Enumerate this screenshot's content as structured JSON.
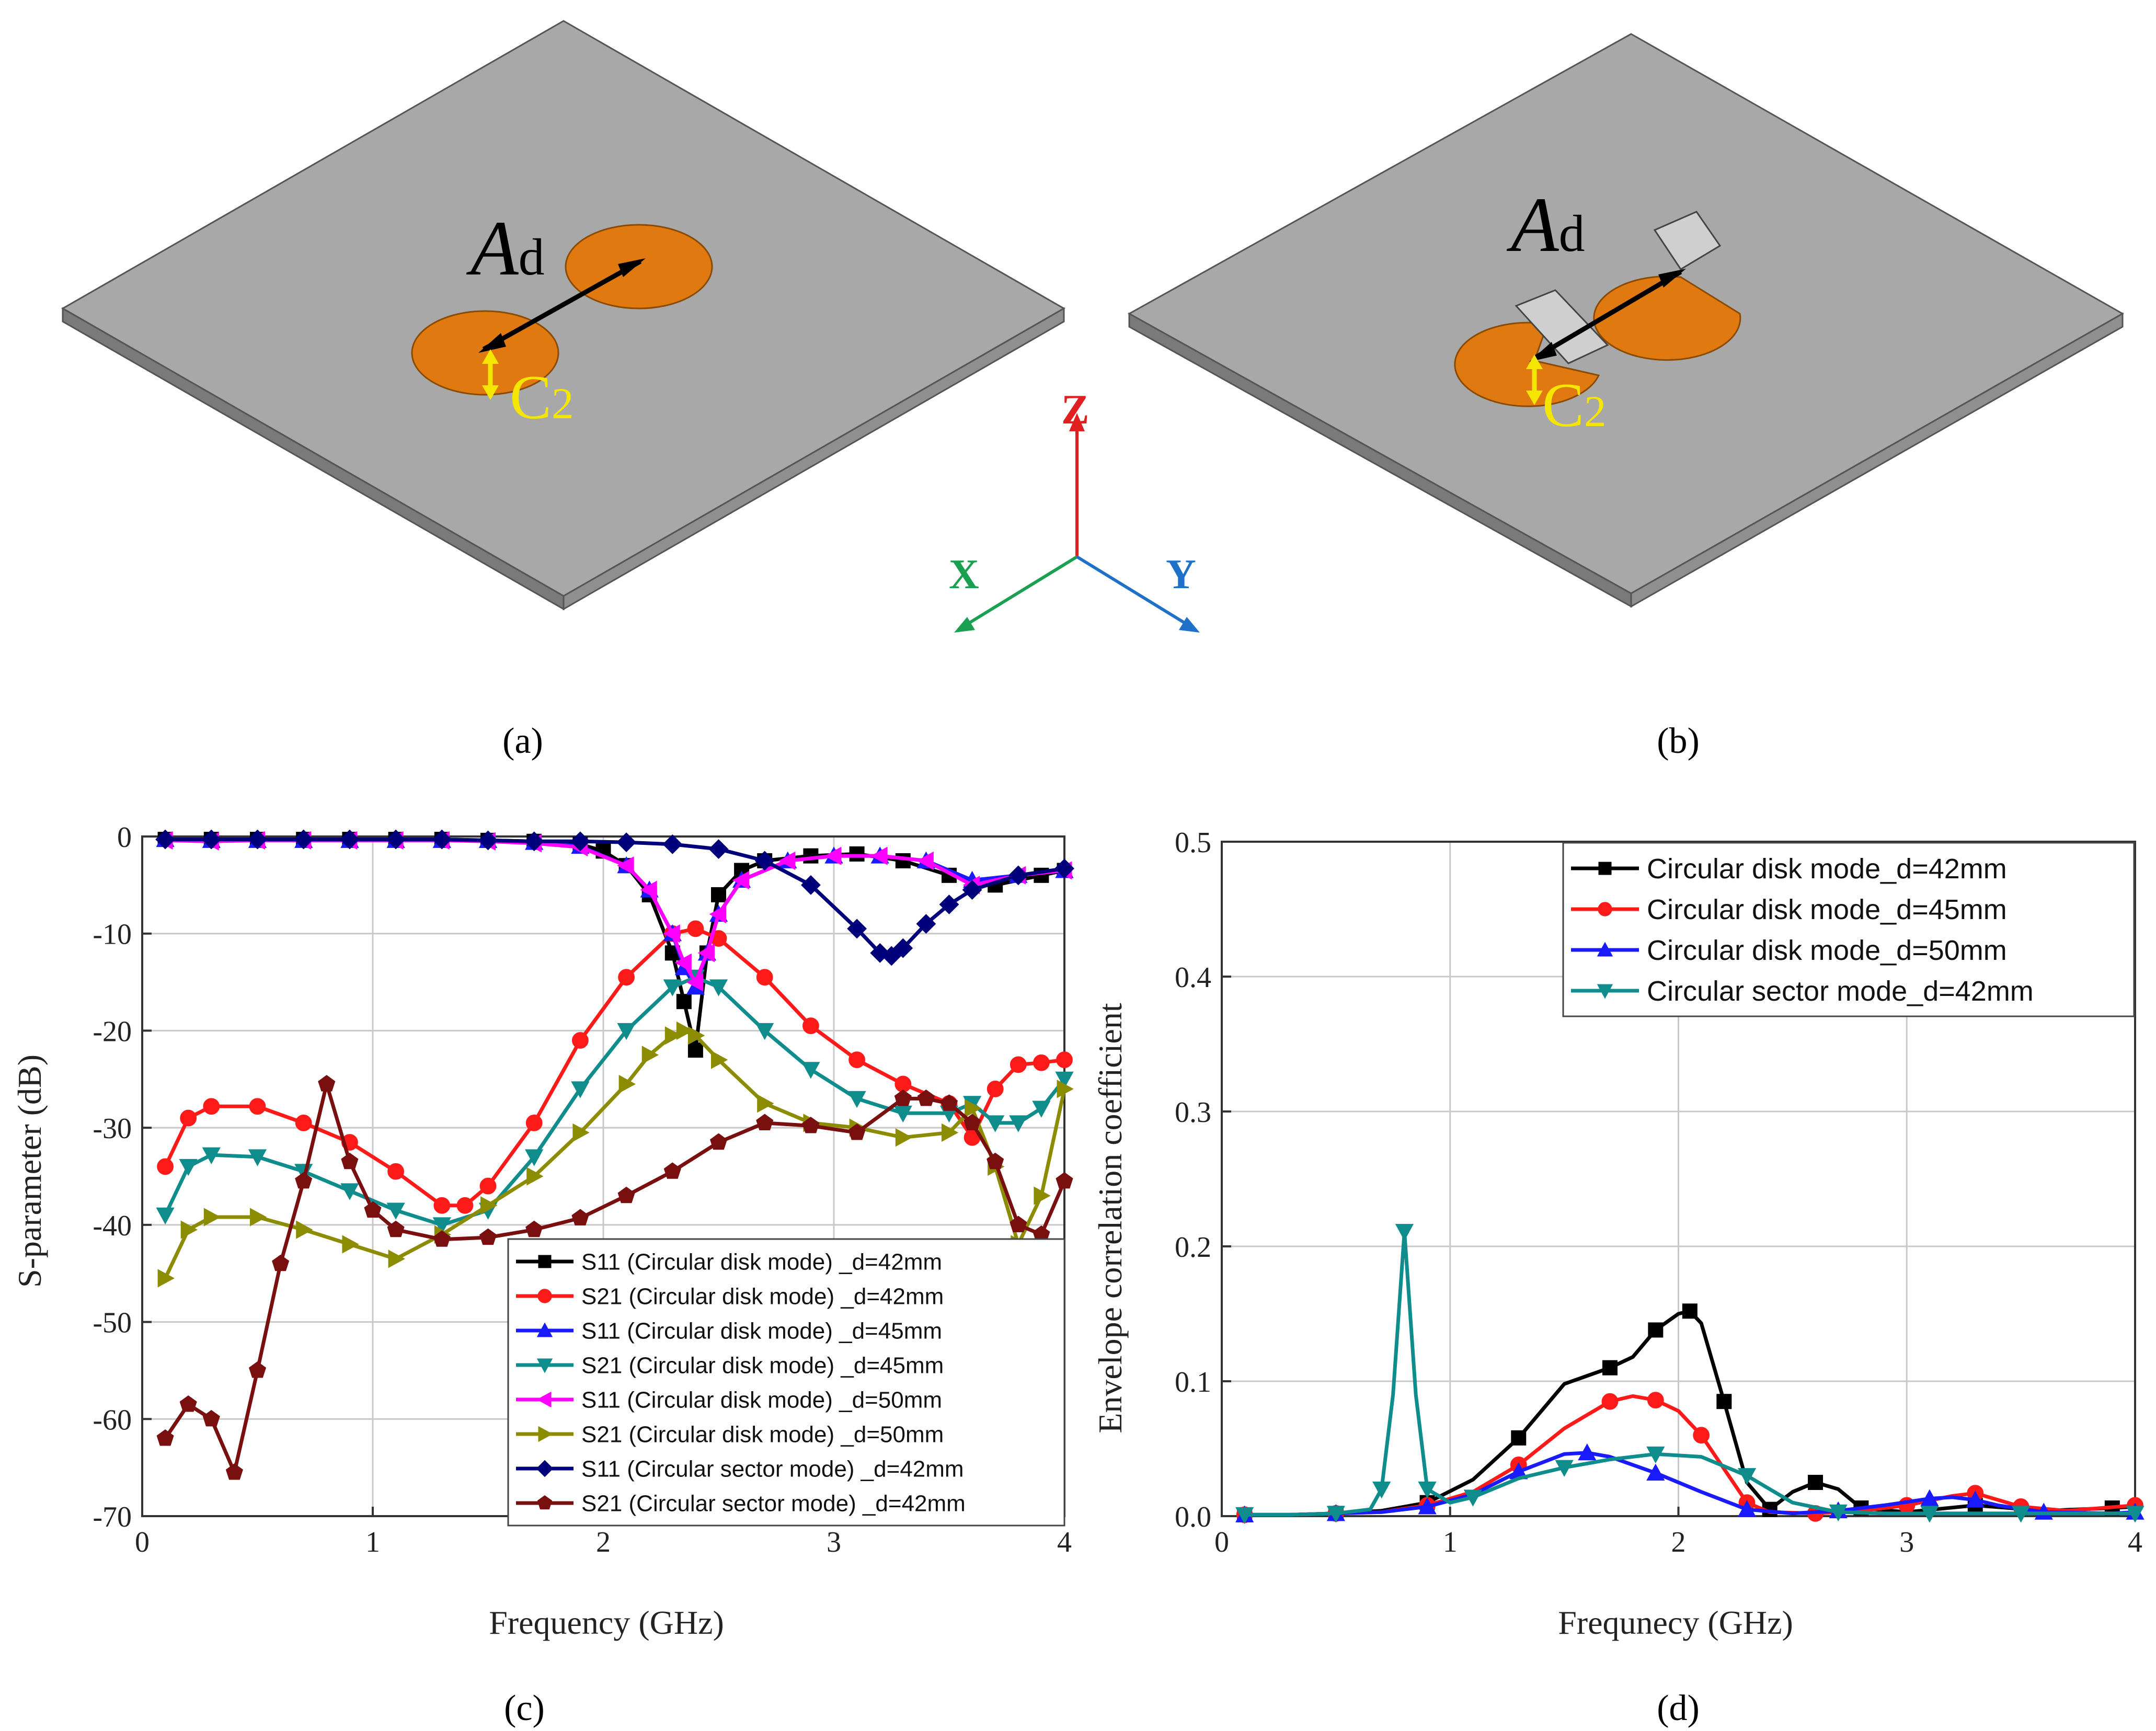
{
  "captions": [
    "(a)",
    "(b)",
    "(c)",
    "(d)"
  ],
  "model_labels": {
    "distance": "A",
    "distance_sub": "d",
    "coupler": "C",
    "coupler_sub": "2"
  },
  "axes_labels": {
    "z": "Z",
    "x": "X",
    "y": "Y"
  },
  "colors": {
    "plate": "#a8a8a8",
    "patch": "#e07a10",
    "z_axis": "#e02020",
    "x_axis": "#1aa050",
    "y_axis": "#1f70c8",
    "coupler_arrow": "#f5e600"
  },
  "chart_data": [
    {
      "type": "line",
      "xlabel": "Frequency (GHz)",
      "ylabel": "S-parameter (dB)",
      "xlim": [
        0,
        4
      ],
      "ylim": [
        -70,
        0
      ],
      "xticks": [
        0,
        1,
        2,
        3,
        4
      ],
      "yticks": [
        0,
        -10,
        -20,
        -30,
        -40,
        -50,
        -60,
        -70
      ],
      "grid": true,
      "legend_position": "bottom-right",
      "series": [
        {
          "name": "S11 (Circular disk mode) _d=42mm",
          "color": "#000000",
          "marker": "square",
          "x": [
            0.1,
            0.3,
            0.5,
            0.7,
            0.9,
            1.1,
            1.3,
            1.5,
            1.7,
            1.9,
            2.0,
            2.1,
            2.2,
            2.3,
            2.35,
            2.4,
            2.45,
            2.5,
            2.6,
            2.7,
            2.9,
            3.1,
            3.3,
            3.5,
            3.7,
            3.9,
            4.0
          ],
          "y": [
            -0.3,
            -0.3,
            -0.3,
            -0.3,
            -0.3,
            -0.3,
            -0.3,
            -0.4,
            -0.5,
            -0.8,
            -1.5,
            -3,
            -6,
            -12,
            -17,
            -22,
            -12,
            -6,
            -3.5,
            -2.5,
            -2,
            -1.8,
            -2.5,
            -4,
            -5,
            -4,
            -3.5
          ]
        },
        {
          "name": "S21 (Circular disk mode) _d=42mm",
          "color": "#ff1a1a",
          "marker": "circle",
          "x": [
            0.1,
            0.2,
            0.3,
            0.5,
            0.7,
            0.9,
            1.1,
            1.3,
            1.4,
            1.5,
            1.7,
            1.9,
            2.1,
            2.3,
            2.4,
            2.5,
            2.7,
            2.9,
            3.1,
            3.3,
            3.5,
            3.6,
            3.7,
            3.8,
            3.9,
            4.0
          ],
          "y": [
            -34,
            -29,
            -27.8,
            -27.8,
            -29.5,
            -31.5,
            -34.5,
            -38,
            -38,
            -36,
            -29.5,
            -21,
            -14.5,
            -10,
            -9.5,
            -10.5,
            -14.5,
            -19.5,
            -23,
            -25.5,
            -27.5,
            -31,
            -26,
            -23.5,
            -23.3,
            -23
          ]
        },
        {
          "name": "S11 (Circular disk mode) _d=45mm",
          "color": "#1a1aff",
          "marker": "triangle-up",
          "x": [
            0.1,
            0.3,
            0.5,
            0.7,
            0.9,
            1.1,
            1.3,
            1.5,
            1.7,
            1.9,
            2.1,
            2.2,
            2.3,
            2.35,
            2.4,
            2.45,
            2.5,
            2.6,
            2.8,
            3.0,
            3.2,
            3.4,
            3.6,
            3.8,
            4.0
          ],
          "y": [
            -0.3,
            -0.4,
            -0.4,
            -0.4,
            -0.4,
            -0.4,
            -0.4,
            -0.4,
            -0.6,
            -1,
            -3,
            -5.5,
            -10,
            -13.5,
            -15.5,
            -12,
            -8,
            -4.5,
            -2.5,
            -2,
            -2,
            -2.5,
            -4.5,
            -4,
            -3.5
          ]
        },
        {
          "name": "S21 (Circular disk mode) _d=45mm",
          "color": "#0f8c8c",
          "marker": "triangle-down",
          "x": [
            0.1,
            0.2,
            0.3,
            0.5,
            0.7,
            0.9,
            1.1,
            1.3,
            1.5,
            1.7,
            1.9,
            2.1,
            2.3,
            2.4,
            2.5,
            2.7,
            2.9,
            3.1,
            3.3,
            3.5,
            3.6,
            3.7,
            3.8,
            3.9,
            4.0
          ],
          "y": [
            -39,
            -34,
            -32.8,
            -33,
            -34.5,
            -36.5,
            -38.5,
            -40,
            -38.5,
            -33,
            -26,
            -20,
            -15.5,
            -14.5,
            -15.5,
            -20,
            -24,
            -27,
            -28.5,
            -28.5,
            -27.5,
            -29.5,
            -29.5,
            -28,
            -25
          ]
        },
        {
          "name": "S11 (Circular disk mode) _d=50mm",
          "color": "#ff00ff",
          "marker": "triangle-left",
          "x": [
            0.1,
            0.3,
            0.5,
            0.7,
            0.9,
            1.1,
            1.3,
            1.5,
            1.7,
            1.9,
            2.1,
            2.2,
            2.3,
            2.35,
            2.4,
            2.45,
            2.5,
            2.6,
            2.8,
            3.0,
            3.2,
            3.4,
            3.6,
            3.8,
            4.0
          ],
          "y": [
            -0.4,
            -0.5,
            -0.4,
            -0.4,
            -0.4,
            -0.4,
            -0.4,
            -0.5,
            -0.7,
            -1.1,
            -3,
            -5.5,
            -10,
            -13,
            -15,
            -12,
            -8,
            -4.5,
            -2.5,
            -2,
            -2,
            -2.5,
            -5,
            -4,
            -3.5
          ]
        },
        {
          "name": "S21 (Circular disk mode) _d=50mm",
          "color": "#8c8c00",
          "marker": "triangle-right",
          "x": [
            0.1,
            0.2,
            0.3,
            0.5,
            0.7,
            0.9,
            1.1,
            1.3,
            1.5,
            1.7,
            1.9,
            2.1,
            2.2,
            2.3,
            2.35,
            2.4,
            2.5,
            2.7,
            2.9,
            3.1,
            3.3,
            3.5,
            3.6,
            3.7,
            3.8,
            3.9,
            4.0
          ],
          "y": [
            -45.5,
            -40.5,
            -39.2,
            -39.2,
            -40.5,
            -42,
            -43.5,
            -41,
            -38,
            -35,
            -30.5,
            -25.5,
            -22.5,
            -20.5,
            -20,
            -20.5,
            -23,
            -27.5,
            -29.5,
            -30,
            -31,
            -30.5,
            -28,
            -34,
            -42,
            -37,
            -26
          ]
        },
        {
          "name": "S11 (Circular sector mode) _d=42mm",
          "color": "#00007a",
          "marker": "diamond",
          "x": [
            0.1,
            0.3,
            0.5,
            0.7,
            0.9,
            1.1,
            1.3,
            1.5,
            1.7,
            1.9,
            2.1,
            2.3,
            2.5,
            2.7,
            2.9,
            3.1,
            3.2,
            3.25,
            3.3,
            3.4,
            3.5,
            3.6,
            3.8,
            4.0
          ],
          "y": [
            -0.3,
            -0.3,
            -0.3,
            -0.3,
            -0.3,
            -0.3,
            -0.3,
            -0.4,
            -0.5,
            -0.5,
            -0.6,
            -0.8,
            -1.3,
            -2.5,
            -5,
            -9.5,
            -12,
            -12.3,
            -11.5,
            -9,
            -7,
            -5.5,
            -4,
            -3.3
          ]
        },
        {
          "name": "S21 (Circular sector mode) _d=42mm",
          "color": "#7a0f0f",
          "marker": "pentagon",
          "x": [
            0.1,
            0.2,
            0.3,
            0.4,
            0.5,
            0.6,
            0.7,
            0.8,
            0.9,
            1.0,
            1.1,
            1.3,
            1.5,
            1.7,
            1.9,
            2.1,
            2.3,
            2.5,
            2.7,
            2.9,
            3.1,
            3.3,
            3.4,
            3.5,
            3.6,
            3.7,
            3.8,
            3.9,
            4.0
          ],
          "y": [
            -62,
            -58.5,
            -60,
            -65.5,
            -55,
            -44,
            -35.5,
            -25.5,
            -33.5,
            -38.5,
            -40.5,
            -41.5,
            -41.3,
            -40.5,
            -39.3,
            -37,
            -34.5,
            -31.5,
            -29.5,
            -29.8,
            -30.5,
            -27,
            -27,
            -27.5,
            -29.5,
            -33.5,
            -40,
            -41,
            -35.5
          ]
        }
      ]
    },
    {
      "type": "line",
      "xlabel": "Frequnecy (GHz)",
      "ylabel": "Envelope correlation coefficient",
      "xlim": [
        0,
        4
      ],
      "ylim": [
        0,
        0.5
      ],
      "xticks": [
        0,
        1,
        2,
        3,
        4
      ],
      "yticks": [
        0.0,
        0.1,
        0.2,
        0.3,
        0.4,
        0.5
      ],
      "ytick_labels": [
        "0.0",
        "0.1",
        "0.2",
        "0.3",
        "0.4",
        "0.5"
      ],
      "grid": true,
      "legend_position": "top-right",
      "series": [
        {
          "name": "Circular disk mode_d=42mm",
          "color": "#000000",
          "marker": "square",
          "x": [
            0.1,
            0.3,
            0.5,
            0.7,
            0.9,
            1.1,
            1.3,
            1.5,
            1.7,
            1.8,
            1.9,
            2.0,
            2.05,
            2.1,
            2.2,
            2.3,
            2.4,
            2.5,
            2.6,
            2.7,
            2.8,
            3.0,
            3.3,
            3.6,
            3.9,
            4.0
          ],
          "y": [
            0.001,
            0.001,
            0.002,
            0.004,
            0.01,
            0.027,
            0.058,
            0.098,
            0.11,
            0.118,
            0.138,
            0.15,
            0.152,
            0.143,
            0.085,
            0.025,
            0.005,
            0.018,
            0.025,
            0.02,
            0.006,
            0.003,
            0.008,
            0.004,
            0.006,
            0.007
          ]
        },
        {
          "name": "Circular disk mode_d=45mm",
          "color": "#ff1a1a",
          "marker": "circle",
          "x": [
            0.1,
            0.3,
            0.5,
            0.7,
            0.9,
            1.1,
            1.3,
            1.5,
            1.7,
            1.8,
            1.9,
            2.0,
            2.1,
            2.2,
            2.3,
            2.4,
            2.6,
            2.8,
            3.0,
            3.2,
            3.3,
            3.4,
            3.5,
            3.7,
            4.0
          ],
          "y": [
            0.001,
            0.001,
            0.002,
            0.003,
            0.008,
            0.018,
            0.038,
            0.065,
            0.085,
            0.089,
            0.086,
            0.078,
            0.06,
            0.035,
            0.01,
            0.003,
            0.002,
            0.004,
            0.008,
            0.015,
            0.017,
            0.012,
            0.007,
            0.004,
            0.008
          ]
        },
        {
          "name": "Circular disk mode_d=50mm",
          "color": "#1a1aff",
          "marker": "triangle-up",
          "x": [
            0.1,
            0.3,
            0.5,
            0.7,
            0.9,
            1.1,
            1.3,
            1.5,
            1.6,
            1.7,
            1.9,
            2.1,
            2.3,
            2.5,
            2.7,
            2.9,
            3.1,
            3.2,
            3.3,
            3.4,
            3.6,
            3.9,
            4.0
          ],
          "y": [
            0.001,
            0.001,
            0.002,
            0.003,
            0.007,
            0.016,
            0.033,
            0.046,
            0.047,
            0.044,
            0.032,
            0.018,
            0.005,
            0.002,
            0.004,
            0.008,
            0.013,
            0.014,
            0.012,
            0.008,
            0.003,
            0.002,
            0.003
          ]
        },
        {
          "name": "Circular sector mode_d=42mm",
          "color": "#0f8c8c",
          "marker": "triangle-down",
          "x": [
            0.1,
            0.3,
            0.5,
            0.65,
            0.7,
            0.75,
            0.8,
            0.85,
            0.9,
            1.0,
            1.1,
            1.3,
            1.5,
            1.7,
            1.9,
            2.1,
            2.3,
            2.5,
            2.7,
            2.9,
            3.1,
            3.3,
            3.5,
            3.7,
            4.0
          ],
          "y": [
            0.001,
            0.001,
            0.002,
            0.005,
            0.02,
            0.09,
            0.211,
            0.09,
            0.02,
            0.01,
            0.014,
            0.028,
            0.036,
            0.042,
            0.046,
            0.044,
            0.03,
            0.01,
            0.003,
            0.002,
            0.002,
            0.002,
            0.002,
            0.002,
            0.002
          ]
        }
      ]
    }
  ]
}
